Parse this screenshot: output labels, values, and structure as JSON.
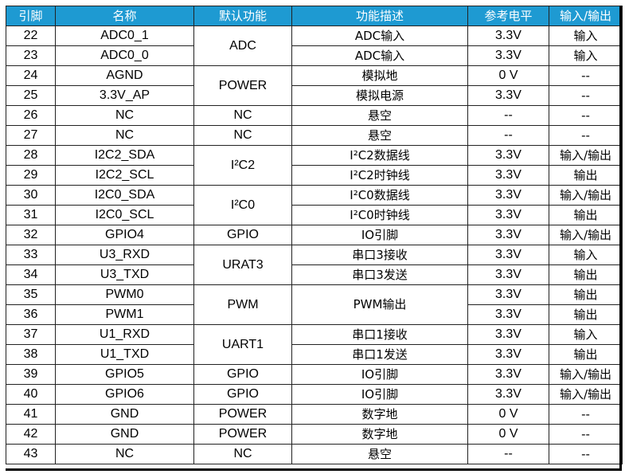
{
  "table": {
    "headers": [
      "引脚",
      "名称",
      "默认功能",
      "功能描述",
      "参考电平",
      "输入/输出"
    ],
    "rows": [
      {
        "pin": "22",
        "name": "ADC0_1",
        "func": "ADC",
        "desc": "ADC输入",
        "level": "3.3V",
        "io": "输入"
      },
      {
        "pin": "23",
        "name": "ADC0_0",
        "func": "",
        "desc": "ADC输入",
        "level": "3.3V",
        "io": "输入"
      },
      {
        "pin": "24",
        "name": "AGND",
        "func": "POWER",
        "desc": "模拟地",
        "level": "0 V",
        "io": "--"
      },
      {
        "pin": "25",
        "name": "3.3V_AP",
        "func": "",
        "desc": "模拟电源",
        "level": "3.3V",
        "io": "--"
      },
      {
        "pin": "26",
        "name": "NC",
        "func": "NC",
        "desc": "悬空",
        "level": "--",
        "io": "--"
      },
      {
        "pin": "27",
        "name": "NC",
        "func": "NC",
        "desc": "悬空",
        "level": "--",
        "io": "--"
      },
      {
        "pin": "28",
        "name": "I2C2_SDA",
        "func": "I²C2",
        "desc": "I²C2数据线",
        "level": "3.3V",
        "io": "输入/输出"
      },
      {
        "pin": "29",
        "name": "I2C2_SCL",
        "func": "",
        "desc": "I²C2时钟线",
        "level": "3.3V",
        "io": "输出"
      },
      {
        "pin": "30",
        "name": "I2C0_SDA",
        "func": "I²C0",
        "desc": "I²C0数据线",
        "level": "3.3V",
        "io": "输入/输出"
      },
      {
        "pin": "31",
        "name": "I2C0_SCL",
        "func": "",
        "desc": "I²C0时钟线",
        "level": "3.3V",
        "io": "输出"
      },
      {
        "pin": "32",
        "name": "GPIO4",
        "func": "GPIO",
        "desc": "IO引脚",
        "level": "3.3V",
        "io": "输入/输出"
      },
      {
        "pin": "33",
        "name": "U3_RXD",
        "func": "URAT3",
        "desc": "串口3接收",
        "level": "3.3V",
        "io": "输入"
      },
      {
        "pin": "34",
        "name": "U3_TXD",
        "func": "",
        "desc": "串口3发送",
        "level": "3.3V",
        "io": "输出"
      },
      {
        "pin": "35",
        "name": "PWM0",
        "func": "PWM",
        "desc": "PWM输出",
        "level": "3.3V",
        "io": "输出"
      },
      {
        "pin": "36",
        "name": "PWM1",
        "func": "",
        "desc": "",
        "level": "3.3V",
        "io": "输出"
      },
      {
        "pin": "37",
        "name": "U1_RXD",
        "func": "UART1",
        "desc": "串口1接收",
        "level": "3.3V",
        "io": "输入"
      },
      {
        "pin": "38",
        "name": "U1_TXD",
        "func": "",
        "desc": "串口1发送",
        "level": "3.3V",
        "io": "输出"
      },
      {
        "pin": "39",
        "name": "GPIO5",
        "func": "GPIO",
        "desc": "IO引脚",
        "level": "3.3V",
        "io": "输入/输出"
      },
      {
        "pin": "40",
        "name": "GPIO6",
        "func": "GPIO",
        "desc": "IO引脚",
        "level": "3.3V",
        "io": "输入/输出"
      },
      {
        "pin": "41",
        "name": "GND",
        "func": "POWER",
        "desc": "数字地",
        "level": "0 V",
        "io": "--"
      },
      {
        "pin": "42",
        "name": "GND",
        "func": "POWER",
        "desc": "数字地",
        "level": "0 V",
        "io": "--"
      },
      {
        "pin": "43",
        "name": "NC",
        "func": "NC",
        "desc": "悬空",
        "level": "--",
        "io": "--"
      }
    ]
  },
  "colors": {
    "header_bg": "#1e9ad2",
    "header_text": "#ffffff",
    "border": "#222222"
  }
}
